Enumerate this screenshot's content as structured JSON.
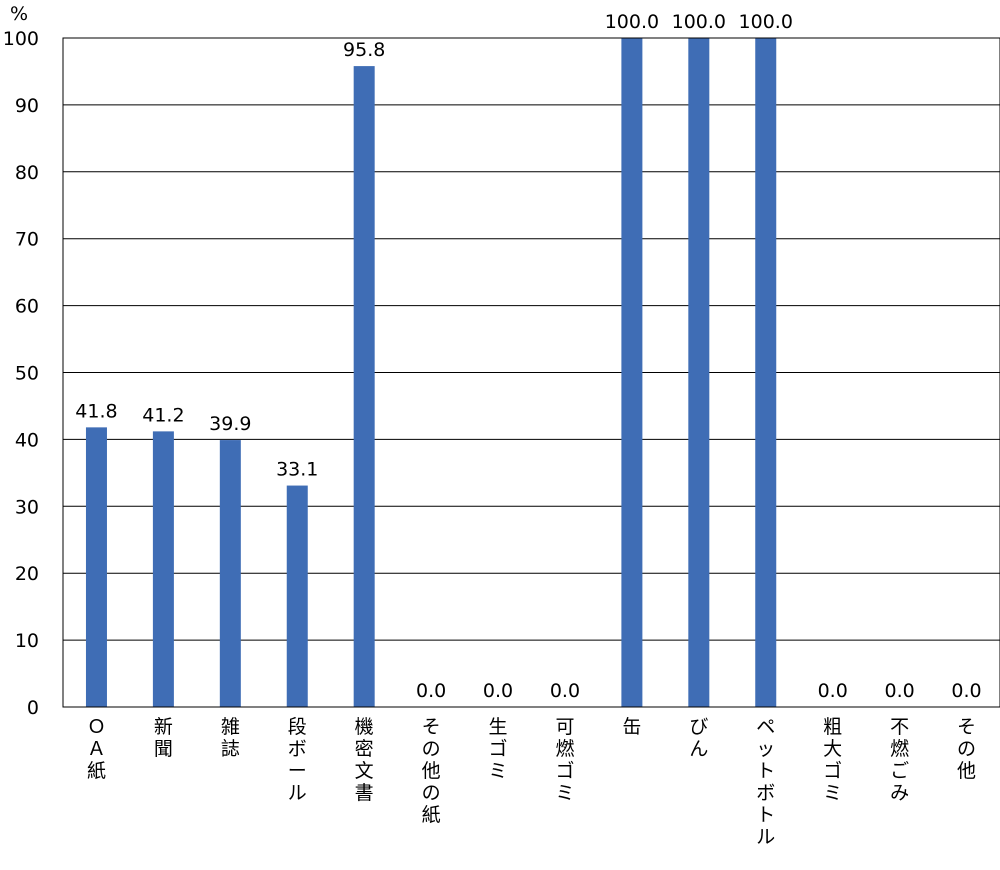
{
  "chart_data": {
    "type": "bar",
    "ylabel": "%",
    "ylim": [
      0,
      100
    ],
    "yticks": [
      "0",
      "10",
      "20",
      "30",
      "40",
      "50",
      "60",
      "70",
      "80",
      "90",
      "100"
    ],
    "grid": true,
    "legend": "none",
    "bar_color": "#3F6DB5",
    "categories": [
      "ＯＡ紙",
      "新聞",
      "雑誌",
      "段ボール",
      "機密文書",
      "その他の紙",
      "生ゴミ",
      "可燃ゴミ",
      "缶",
      "びん",
      "ペットボトル",
      "粗大ゴミ",
      "不燃ごみ",
      "その他"
    ],
    "values": [
      41.8,
      41.2,
      39.9,
      33.1,
      95.8,
      0.0,
      0.0,
      0.0,
      100.0,
      100.0,
      100.0,
      0.0,
      0.0,
      0.0
    ],
    "value_labels": [
      "41.8",
      "41.2",
      "39.9",
      "33.1",
      "95.8",
      "0.0",
      "0.0",
      "0.0",
      "100.0",
      "100.0",
      "100.0",
      "0.0",
      "0.0",
      "0.0"
    ]
  }
}
